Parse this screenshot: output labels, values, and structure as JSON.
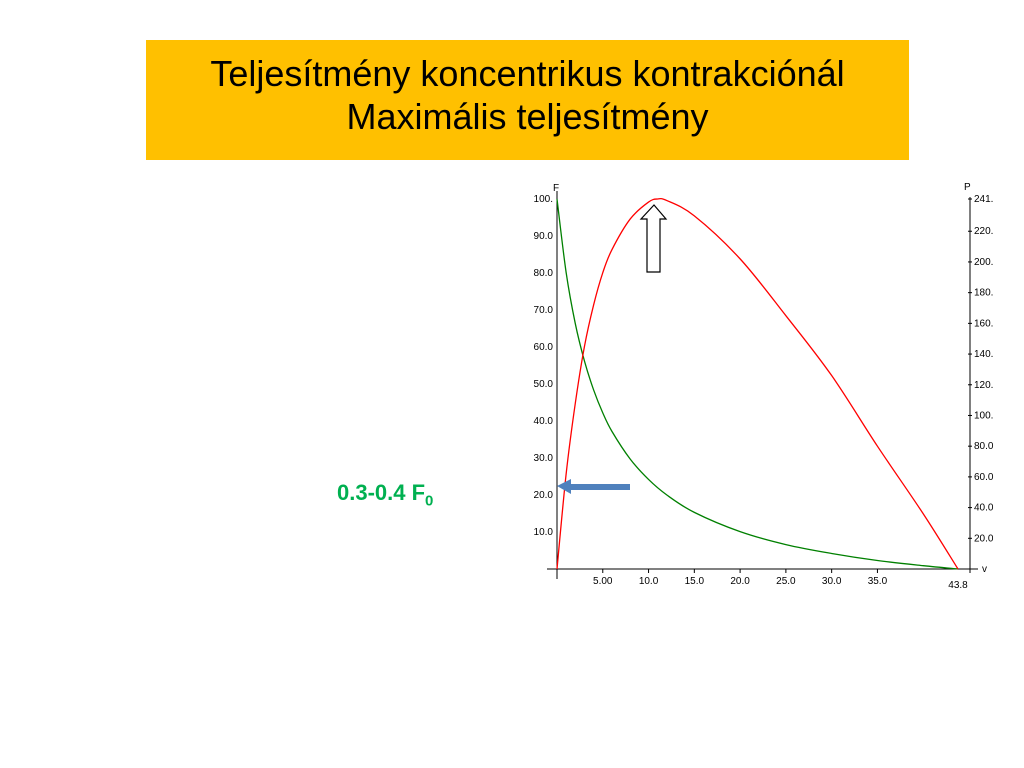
{
  "slide": {
    "title_line1": "Teljesítmény koncentrikus kontrakciónál",
    "title_line2": "Maximális teljesítmény",
    "annotation_text": "0.3-0.4 F",
    "annotation_sub": "0",
    "colors": {
      "title_bg": "#FFC000",
      "annotation": "#00B050",
      "arrow": "#4F81BD"
    }
  },
  "chart_data": {
    "type": "line",
    "xlabel": "v",
    "ylabel_left": "F",
    "ylabel_right": "P",
    "xlim": [
      0,
      43.8
    ],
    "ylim_left": [
      0,
      100
    ],
    "ylim_right": [
      0,
      241
    ],
    "x_ticks": [
      "5.00",
      "10.0",
      "15.0",
      "20.0",
      "25.0",
      "30.0",
      "35.0"
    ],
    "x_tick_values": [
      5,
      10,
      15,
      20,
      25,
      30,
      35
    ],
    "x_end_label": "43.8",
    "y_left_ticks": [
      "10.0",
      "20.0",
      "30.0",
      "40.0",
      "50.0",
      "60.0",
      "70.0",
      "80.0",
      "90.0",
      "100."
    ],
    "y_left_values": [
      10,
      20,
      30,
      40,
      50,
      60,
      70,
      80,
      90,
      100
    ],
    "y_right_ticks": [
      "20.0",
      "40.0",
      "60.0",
      "80.0",
      "100.",
      "120.",
      "140.",
      "160.",
      "180.",
      "200.",
      "220.",
      "241."
    ],
    "y_right_values": [
      20,
      40,
      60,
      80,
      100,
      120,
      140,
      160,
      180,
      200,
      220,
      241
    ],
    "grid": false,
    "series": [
      {
        "axis": "left",
        "color": "#008000",
        "x": [
          0,
          1,
          2,
          3,
          4,
          5,
          6,
          8,
          10,
          12,
          15,
          20,
          25,
          30,
          35,
          40,
          43.8
        ],
        "y": [
          100,
          80.1,
          66.3,
          56.2,
          48.4,
          42.2,
          37.2,
          29.7,
          24.2,
          20.0,
          15.3,
          10.1,
          6.6,
          4.2,
          2.3,
          0.9,
          0
        ]
      },
      {
        "axis": "right",
        "color": "#FF0000",
        "x": [
          0,
          1,
          2,
          3,
          4,
          5,
          6,
          8,
          10,
          11,
          12,
          15,
          20,
          25,
          30,
          35,
          40,
          43.8
        ],
        "y": [
          0,
          62,
          108,
          145,
          172,
          193,
          208,
          228,
          239,
          241,
          240,
          230,
          202,
          165,
          126,
          80,
          36,
          0
        ]
      }
    ]
  }
}
